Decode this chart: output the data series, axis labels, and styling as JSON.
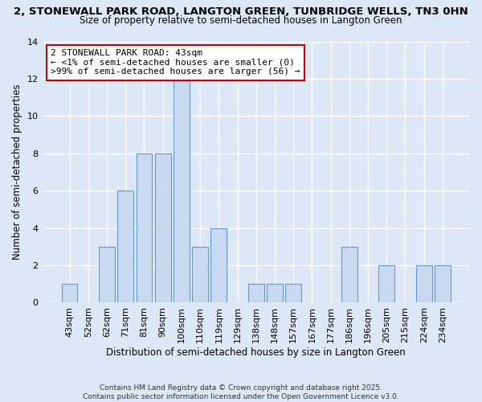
{
  "title": "2, STONEWALL PARK ROAD, LANGTON GREEN, TUNBRIDGE WELLS, TN3 0HN",
  "subtitle": "Size of property relative to semi-detached houses in Langton Green",
  "xlabel": "Distribution of semi-detached houses by size in Langton Green",
  "ylabel": "Number of semi-detached properties",
  "categories": [
    "43sqm",
    "52sqm",
    "62sqm",
    "71sqm",
    "81sqm",
    "90sqm",
    "100sqm",
    "110sqm",
    "119sqm",
    "129sqm",
    "138sqm",
    "148sqm",
    "157sqm",
    "167sqm",
    "177sqm",
    "186sqm",
    "196sqm",
    "205sqm",
    "215sqm",
    "224sqm",
    "234sqm"
  ],
  "values": [
    1,
    0,
    3,
    6,
    8,
    8,
    12,
    3,
    4,
    0,
    1,
    1,
    1,
    0,
    0,
    3,
    0,
    2,
    0,
    2,
    2
  ],
  "bar_color": "#c9d9f0",
  "bar_edge_color": "#6699cc",
  "annotation_title": "2 STONEWALL PARK ROAD: 43sqm",
  "annotation_line1": "← <1% of semi-detached houses are smaller (0)",
  "annotation_line2": ">99% of semi-detached houses are larger (56) →",
  "annotation_box_color": "#ffffff",
  "annotation_box_edge": "#cc0000",
  "ylim": [
    0,
    14
  ],
  "yticks": [
    0,
    2,
    4,
    6,
    8,
    10,
    12,
    14
  ],
  "background_color": "#dce8f5",
  "footer_line1": "Contains HM Land Registry data © Crown copyright and database right 2025.",
  "footer_line2": "Contains public sector information licensed under the Open Government Licence v3.0."
}
